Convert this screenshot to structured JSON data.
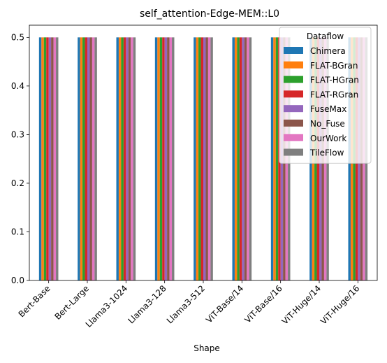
{
  "chart_data": {
    "type": "bar",
    "title": "self_attention-Edge-MEM::L0",
    "xlabel": "Shape",
    "ylabel": "",
    "ylim": [
      0,
      0.525
    ],
    "yticks": [
      "0.0",
      "0.1",
      "0.2",
      "0.3",
      "0.4",
      "0.5"
    ],
    "grid": false,
    "legend_position": "top-right",
    "legend_title": "Dataflow",
    "categories": [
      "Bert-Base",
      "Bert-Large",
      "Llama3-1024",
      "Llama3-128",
      "Llama3-512",
      "ViT-Base/14",
      "ViT-Base/16",
      "ViT-Huge/14",
      "ViT-Huge/16"
    ],
    "series": [
      {
        "name": "Chimera",
        "color": "#1f77b4",
        "values": [
          0.5,
          0.5,
          0.5,
          0.5,
          0.5,
          0.5,
          0.5,
          0.5,
          0.5
        ]
      },
      {
        "name": "FLAT-BGran",
        "color": "#ff7f0e",
        "values": [
          0.5,
          0.5,
          0.5,
          0.5,
          0.5,
          0.5,
          0.5,
          0.5,
          0.5
        ]
      },
      {
        "name": "FLAT-HGran",
        "color": "#2ca02c",
        "values": [
          0.5,
          0.5,
          0.5,
          0.5,
          0.5,
          0.5,
          0.5,
          0.5,
          0.5
        ]
      },
      {
        "name": "FLAT-RGran",
        "color": "#d62728",
        "values": [
          0.5,
          0.5,
          0.5,
          0.5,
          0.5,
          0.5,
          0.5,
          0.5,
          0.5
        ]
      },
      {
        "name": "FuseMax",
        "color": "#9467bd",
        "values": [
          0.5,
          0.5,
          0.5,
          0.5,
          0.5,
          0.5,
          0.5,
          0.5,
          0.5
        ]
      },
      {
        "name": "No_Fuse",
        "color": "#8c564b",
        "values": [
          0.5,
          0.5,
          0.5,
          0.5,
          0.5,
          0.5,
          0.5,
          0.5,
          0.5
        ]
      },
      {
        "name": "OurWork",
        "color": "#e377c2",
        "values": [
          0.5,
          0.5,
          0.5,
          0.5,
          0.5,
          0.5,
          0.5,
          0.5,
          0.5
        ]
      },
      {
        "name": "TileFlow",
        "color": "#7f7f7f",
        "values": [
          0.5,
          0.5,
          0.5,
          0.5,
          0.5,
          0.5,
          0.5,
          0.5,
          0.5
        ]
      }
    ]
  }
}
